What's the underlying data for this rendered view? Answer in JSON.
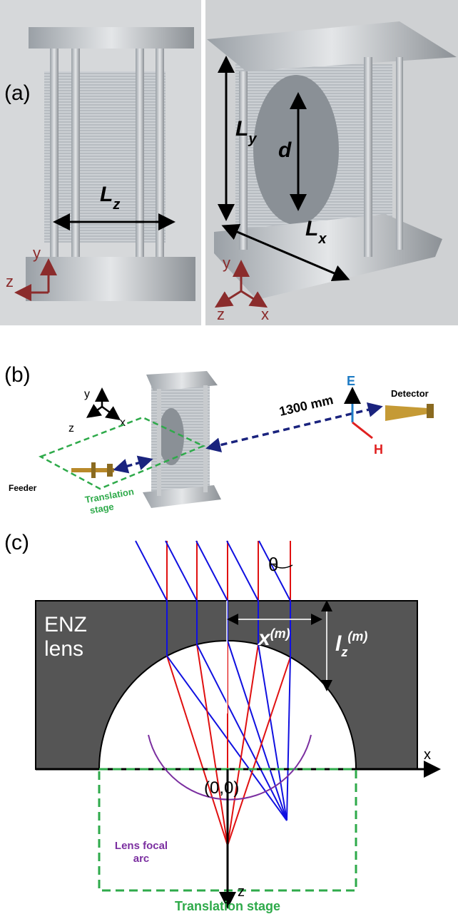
{
  "panel_a": {
    "label": "(a)",
    "left": {
      "dimension": {
        "symbol": "L",
        "subscript": "z"
      },
      "axes": [
        "y",
        "z"
      ]
    },
    "right": {
      "dimensions": [
        {
          "symbol": "L",
          "subscript": "y"
        },
        {
          "symbol": "d"
        },
        {
          "symbol": "L",
          "subscript": "x"
        }
      ],
      "axes": [
        "y",
        "z",
        "x"
      ]
    }
  },
  "panel_b": {
    "label": "(b)",
    "axes": [
      "y",
      "z",
      "x"
    ],
    "distance": "1300 mm",
    "feeder": "Feeder",
    "stage_lines": [
      "Translation",
      "stage"
    ],
    "detector": "Detector",
    "field_e": "E",
    "field_h": "H"
  },
  "panel_c": {
    "label": "(c)",
    "angle": "θ",
    "lens_lines": [
      "ENZ",
      "lens"
    ],
    "x_m": {
      "symbol": "x",
      "superscript": "(m)"
    },
    "lz_m": {
      "symbol": "l",
      "subscript": "z",
      "superscript": "(m)"
    },
    "x_axis": "x",
    "origin": "(0,0)",
    "focal_arc_lines": [
      "Lens focal",
      "arc"
    ],
    "z_axis": "z",
    "stage": "Translation stage"
  }
}
